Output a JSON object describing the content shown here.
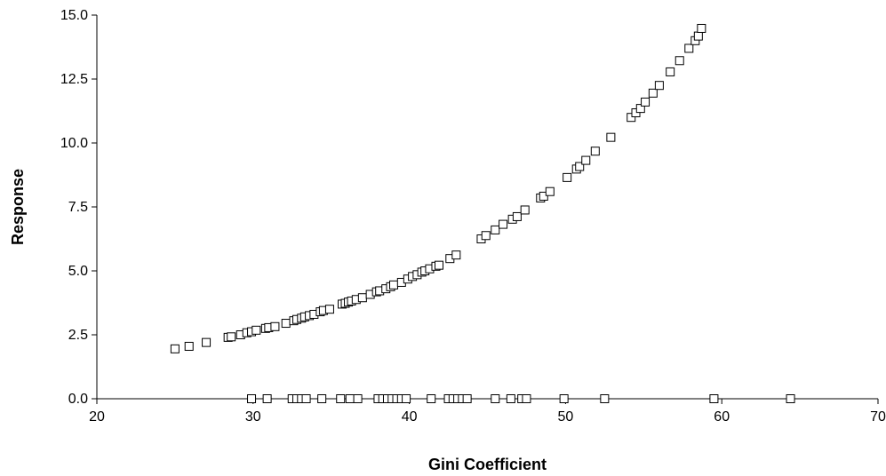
{
  "chart_data": {
    "type": "scatter",
    "xlabel": "Gini Coefficient",
    "ylabel": "Response",
    "xlim": [
      20,
      70
    ],
    "ylim": [
      0,
      15
    ],
    "x_ticks": [
      "20",
      "30",
      "40",
      "50",
      "60",
      "70"
    ],
    "y_ticks": [
      "0.0",
      "2.5",
      "5.0",
      "7.5",
      "10.0",
      "12.5",
      "15.0"
    ],
    "grid": false,
    "marker": "open-square",
    "series": [
      {
        "points": [
          [
            25.0,
            1.95
          ],
          [
            25.9,
            2.05
          ],
          [
            27.0,
            2.2
          ],
          [
            28.4,
            2.4
          ],
          [
            28.6,
            2.42
          ],
          [
            29.2,
            2.5
          ],
          [
            29.6,
            2.58
          ],
          [
            29.9,
            2.62
          ],
          [
            30.2,
            2.68
          ],
          [
            30.8,
            2.75
          ],
          [
            31.0,
            2.78
          ],
          [
            31.4,
            2.82
          ],
          [
            32.1,
            2.95
          ],
          [
            32.6,
            3.05
          ],
          [
            32.8,
            3.1
          ],
          [
            33.1,
            3.15
          ],
          [
            33.3,
            3.2
          ],
          [
            33.6,
            3.25
          ],
          [
            33.9,
            3.3
          ],
          [
            34.3,
            3.4
          ],
          [
            34.5,
            3.45
          ],
          [
            34.9,
            3.5
          ],
          [
            35.7,
            3.7
          ],
          [
            35.9,
            3.73
          ],
          [
            36.1,
            3.78
          ],
          [
            36.3,
            3.82
          ],
          [
            36.6,
            3.88
          ],
          [
            37.0,
            3.95
          ],
          [
            37.5,
            4.08
          ],
          [
            37.9,
            4.18
          ],
          [
            38.1,
            4.22
          ],
          [
            38.5,
            4.3
          ],
          [
            38.8,
            4.38
          ],
          [
            39.0,
            4.45
          ],
          [
            39.5,
            4.55
          ],
          [
            39.9,
            4.68
          ],
          [
            40.2,
            4.78
          ],
          [
            40.5,
            4.85
          ],
          [
            40.8,
            4.95
          ],
          [
            41.0,
            5.0
          ],
          [
            41.3,
            5.08
          ],
          [
            41.7,
            5.18
          ],
          [
            41.9,
            5.22
          ],
          [
            42.6,
            5.48
          ],
          [
            43.0,
            5.62
          ],
          [
            44.6,
            6.25
          ],
          [
            44.9,
            6.38
          ],
          [
            45.5,
            6.6
          ],
          [
            46.0,
            6.82
          ],
          [
            46.6,
            7.02
          ],
          [
            46.9,
            7.12
          ],
          [
            47.4,
            7.38
          ],
          [
            48.4,
            7.85
          ],
          [
            48.6,
            7.92
          ],
          [
            49.0,
            8.1
          ],
          [
            50.1,
            8.65
          ],
          [
            50.7,
            8.98
          ],
          [
            50.9,
            9.08
          ],
          [
            51.3,
            9.32
          ],
          [
            51.9,
            9.68
          ],
          [
            52.9,
            10.22
          ],
          [
            54.2,
            11.0
          ],
          [
            54.5,
            11.18
          ],
          [
            54.8,
            11.35
          ],
          [
            55.1,
            11.6
          ],
          [
            55.6,
            11.95
          ],
          [
            56.0,
            12.25
          ],
          [
            56.7,
            12.78
          ],
          [
            57.3,
            13.22
          ],
          [
            57.9,
            13.7
          ],
          [
            58.3,
            14.0
          ],
          [
            58.5,
            14.18
          ],
          [
            58.7,
            14.48
          ],
          [
            29.9,
            0.0
          ],
          [
            30.9,
            0.0
          ],
          [
            32.5,
            0.0
          ],
          [
            32.8,
            0.0
          ],
          [
            33.1,
            0.0
          ],
          [
            33.4,
            0.0
          ],
          [
            34.4,
            0.0
          ],
          [
            35.6,
            0.0
          ],
          [
            36.2,
            0.0
          ],
          [
            36.7,
            0.0
          ],
          [
            38.0,
            0.0
          ],
          [
            38.3,
            0.0
          ],
          [
            38.6,
            0.0
          ],
          [
            38.9,
            0.0
          ],
          [
            39.2,
            0.0
          ],
          [
            39.5,
            0.0
          ],
          [
            39.8,
            0.0
          ],
          [
            41.4,
            0.0
          ],
          [
            42.5,
            0.0
          ],
          [
            42.8,
            0.0
          ],
          [
            43.1,
            0.0
          ],
          [
            43.4,
            0.0
          ],
          [
            43.7,
            0.0
          ],
          [
            45.5,
            0.0
          ],
          [
            46.5,
            0.0
          ],
          [
            47.2,
            0.0
          ],
          [
            47.5,
            0.0
          ],
          [
            49.9,
            0.0
          ],
          [
            52.5,
            0.0
          ],
          [
            59.5,
            0.0
          ],
          [
            64.4,
            0.0
          ]
        ]
      }
    ]
  }
}
